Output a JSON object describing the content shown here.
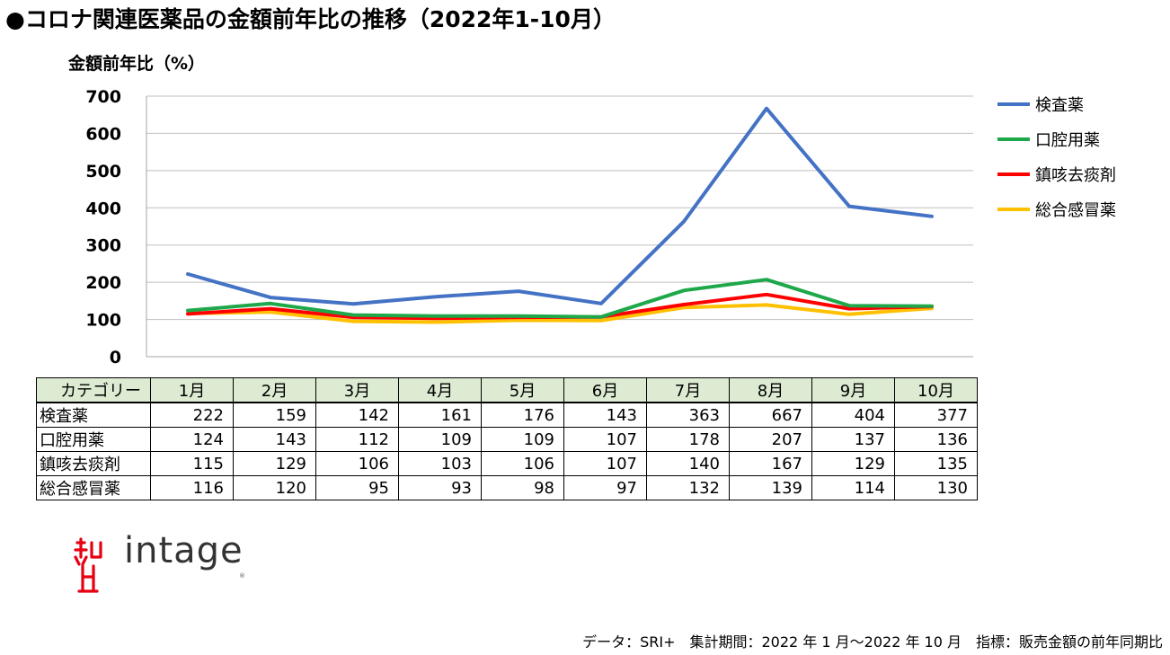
{
  "title": "●コロナ関連医薬品の金額前年比の推移（2022年1-10月）",
  "footer": "データ：SRI+　集計期間：2022 年 1 月～2022 年 10 月　指標：販売金額の前年同期比",
  "logo": {
    "text": "intage",
    "mark": "intage-logo-icon",
    "registered": "®"
  },
  "colors": {
    "検査薬": "#4472c4",
    "口腔用薬": "#1ea84a",
    "鎮咳去痰剤": "#ff0000",
    "総合感冒薬": "#ffc000",
    "table_header": "#dcebd2"
  },
  "chart_data": {
    "type": "line",
    "ylabel": "金額前年比（%）",
    "ylim": [
      0,
      700
    ],
    "yticks": [
      0,
      100,
      200,
      300,
      400,
      500,
      600,
      700
    ],
    "grid": true,
    "legend_position": "right",
    "categories": [
      "1月",
      "2月",
      "3月",
      "4月",
      "5月",
      "6月",
      "7月",
      "8月",
      "9月",
      "10月"
    ],
    "series": [
      {
        "name": "検査薬",
        "values": [
          222,
          159,
          142,
          161,
          176,
          143,
          363,
          667,
          404,
          377
        ]
      },
      {
        "name": "口腔用薬",
        "values": [
          124,
          143,
          112,
          109,
          109,
          107,
          178,
          207,
          137,
          136
        ]
      },
      {
        "name": "鎮咳去痰剤",
        "values": [
          115,
          129,
          106,
          103,
          106,
          107,
          140,
          167,
          129,
          135
        ]
      },
      {
        "name": "総合感冒薬",
        "values": [
          116,
          120,
          95,
          93,
          98,
          97,
          132,
          139,
          114,
          130
        ]
      }
    ],
    "table_header": "カテゴリー"
  }
}
